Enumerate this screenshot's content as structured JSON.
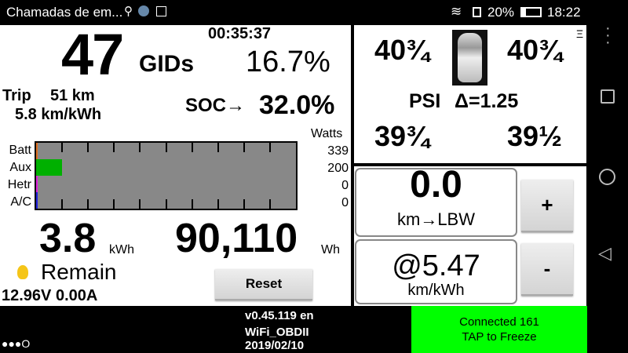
{
  "status_bar": {
    "notification_title": "Chamadas de em...",
    "battery_percent": "20%",
    "battery_level": 20,
    "time": "18:22",
    "icons": [
      "location-icon",
      "app-icon",
      "image-icon",
      "wifi-icon",
      "sim-icon",
      "battery-icon"
    ]
  },
  "main": {
    "gids_value": "47",
    "gids_label": "GIDs",
    "timer": "00:35:37",
    "gids_percent": "16.7%",
    "trip_label": "Trip",
    "trip_distance": "51 km",
    "trip_efficiency": "5.8 km/kWh",
    "soc_label": "SOC→",
    "soc_value": "32.0%",
    "power": {
      "unit_label": "Watts",
      "rows": [
        {
          "label": "Batt",
          "value": "339",
          "color": "#e07020",
          "fill": 0
        },
        {
          "label": "Aux",
          "value": "200",
          "color": "#00b000",
          "fill": 0.1
        },
        {
          "label": "Hetr",
          "value": "0",
          "color": "#e020e0",
          "fill": 0
        },
        {
          "label": "A/C",
          "value": "0",
          "color": "#2020e0",
          "fill": 0
        }
      ]
    },
    "energy_value": "3.8",
    "energy_unit": "kWh",
    "remain_label": "Remain",
    "odometer_energy": "90,110",
    "odometer_unit": "Wh",
    "battery_12v": "12.96V 0.00A",
    "reset_label": "Reset"
  },
  "tires": {
    "front_left": "40¾",
    "front_right": "40¾",
    "rear_left": "39¾",
    "rear_right": "39½",
    "psi_label": "PSI",
    "delta": "Δ=1.25",
    "menu_glyph": "Ξ"
  },
  "range": {
    "distance": "0.0",
    "distance_label": "km→LBW",
    "efficiency": "@5.47",
    "efficiency_unit": "km/kWh",
    "plus_label": "+",
    "minus_label": "-"
  },
  "footer": {
    "dots": "●●●O",
    "version_line1": "v0.45.119 en",
    "version_line2": "WiFi_OBDII",
    "version_line3": "2019/02/10",
    "connection_line1": "Connected 161",
    "connection_line2": "TAP to Freeze",
    "connection_color": "#00ff00"
  }
}
